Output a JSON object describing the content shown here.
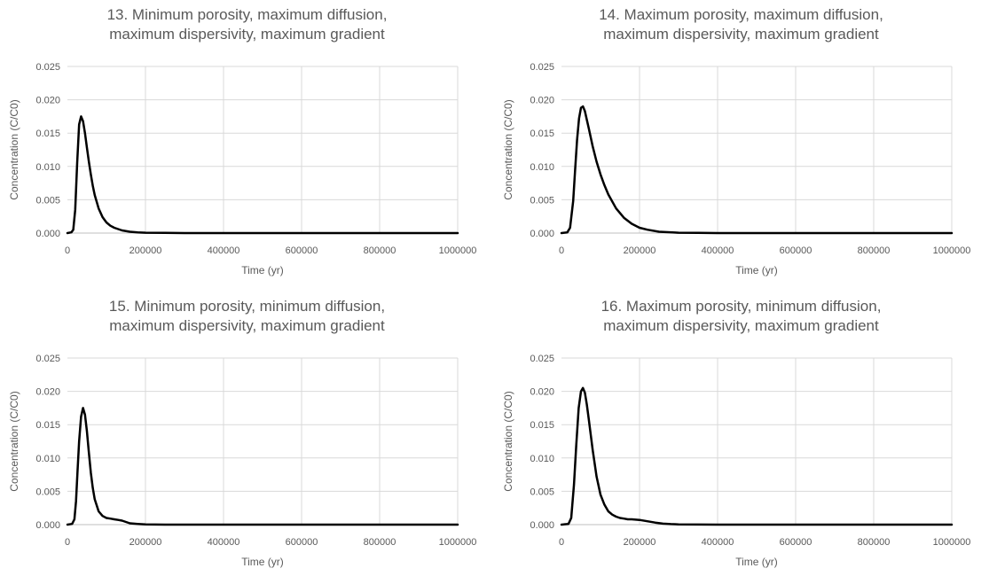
{
  "chart_data": [
    {
      "type": "line",
      "title_lines": [
        "13. Minimum porosity, maximum diffusion,",
        "maximum dispersivity, maximum gradient"
      ],
      "xlabel": "Time (yr)",
      "ylabel": "Concentration (C/C0)",
      "xlim": [
        0,
        1000000
      ],
      "ylim": [
        0,
        0.025
      ],
      "xticks": [
        "0",
        "200000",
        "400000",
        "600000",
        "800000",
        "1000000"
      ],
      "yticks": [
        "0.000",
        "0.005",
        "0.010",
        "0.015",
        "0.020",
        "0.025"
      ],
      "grid": true,
      "legend": "none",
      "line_color": "#000000",
      "series": [
        {
          "x": [
            0,
            10000,
            15000,
            20000,
            25000,
            30000,
            35000,
            40000,
            45000,
            50000,
            55000,
            60000,
            65000,
            70000,
            80000,
            90000,
            100000,
            110000,
            120000,
            140000,
            160000,
            180000,
            200000,
            250000,
            300000,
            400000,
            600000,
            800000,
            1000000
          ],
          "y": [
            0,
            0.0001,
            0.0005,
            0.0035,
            0.0105,
            0.0163,
            0.0175,
            0.0168,
            0.015,
            0.0128,
            0.0107,
            0.0088,
            0.0071,
            0.0057,
            0.0037,
            0.0024,
            0.0016,
            0.0011,
            0.0008,
            0.0004,
            0.0002,
            0.0001,
            5e-05,
            2e-05,
            0,
            0,
            0,
            0,
            0
          ]
        }
      ]
    },
    {
      "type": "line",
      "title_lines": [
        "14. Maximum porosity, maximum diffusion,",
        "maximum dispersivity, maximum gradient"
      ],
      "xlabel": "Time (yr)",
      "ylabel": "Concentration (C/C0)",
      "xlim": [
        0,
        1000000
      ],
      "ylim": [
        0,
        0.025
      ],
      "xticks": [
        "0",
        "200000",
        "400000",
        "600000",
        "800000",
        "1000000"
      ],
      "yticks": [
        "0.000",
        "0.005",
        "0.010",
        "0.015",
        "0.020",
        "0.025"
      ],
      "grid": true,
      "legend": "none",
      "line_color": "#000000",
      "series": [
        {
          "x": [
            0,
            15000,
            22000,
            30000,
            35000,
            40000,
            45000,
            50000,
            55000,
            60000,
            65000,
            70000,
            80000,
            90000,
            100000,
            110000,
            120000,
            140000,
            160000,
            180000,
            200000,
            220000,
            250000,
            300000,
            350000,
            400000,
            600000,
            800000,
            1000000
          ],
          "y": [
            0,
            0.0001,
            0.0008,
            0.0048,
            0.0095,
            0.014,
            0.0172,
            0.0188,
            0.019,
            0.0183,
            0.017,
            0.0157,
            0.013,
            0.0107,
            0.0088,
            0.0072,
            0.0058,
            0.0037,
            0.0023,
            0.0014,
            0.0008,
            0.0005,
            0.0002,
            5e-05,
            2e-05,
            0,
            0,
            0,
            0
          ]
        }
      ]
    },
    {
      "type": "line",
      "title_lines": [
        "15. Minimum porosity, minimum diffusion,",
        "maximum dispersivity, maximum gradient"
      ],
      "xlabel": "Time (yr)",
      "ylabel": "Concentration (C/C0)",
      "xlim": [
        0,
        1000000
      ],
      "ylim": [
        0,
        0.025
      ],
      "xticks": [
        "0",
        "200000",
        "400000",
        "600000",
        "800000",
        "1000000"
      ],
      "yticks": [
        "0.000",
        "0.005",
        "0.010",
        "0.015",
        "0.020",
        "0.025"
      ],
      "grid": true,
      "legend": "none",
      "line_color": "#000000",
      "series": [
        {
          "x": [
            0,
            12000,
            18000,
            22000,
            26000,
            30000,
            35000,
            40000,
            45000,
            50000,
            55000,
            60000,
            65000,
            70000,
            80000,
            90000,
            100000,
            110000,
            120000,
            130000,
            140000,
            150000,
            160000,
            180000,
            200000,
            250000,
            300000,
            400000,
            600000,
            800000,
            1000000
          ],
          "y": [
            0,
            0.0001,
            0.0008,
            0.0035,
            0.008,
            0.0125,
            0.0162,
            0.0175,
            0.0165,
            0.014,
            0.0108,
            0.0078,
            0.0055,
            0.0038,
            0.002,
            0.0013,
            0.001,
            0.0009,
            0.0008,
            0.0007,
            0.0006,
            0.0004,
            0.0002,
            0.0001,
            3e-05,
            0,
            0,
            0,
            0,
            0,
            0
          ]
        }
      ]
    },
    {
      "type": "line",
      "title_lines": [
        "16. Maximum porosity, minimum diffusion,",
        "maximum dispersivity, maximum  gradient"
      ],
      "xlabel": "Time (yr)",
      "ylabel": "Concentration (C/C0)",
      "xlim": [
        0,
        1000000
      ],
      "ylim": [
        0,
        0.025
      ],
      "xticks": [
        "0",
        "200000",
        "400000",
        "600000",
        "800000",
        "1000000"
      ],
      "yticks": [
        "0.000",
        "0.005",
        "0.010",
        "0.015",
        "0.020",
        "0.025"
      ],
      "grid": true,
      "legend": "none",
      "line_color": "#000000",
      "series": [
        {
          "x": [
            0,
            18000,
            25000,
            32000,
            38000,
            44000,
            50000,
            55000,
            60000,
            65000,
            70000,
            75000,
            80000,
            90000,
            100000,
            110000,
            120000,
            130000,
            140000,
            150000,
            160000,
            170000,
            180000,
            200000,
            220000,
            240000,
            260000,
            280000,
            300000,
            350000,
            400000,
            600000,
            800000,
            1000000
          ],
          "y": [
            0,
            0.0001,
            0.001,
            0.006,
            0.012,
            0.0175,
            0.02,
            0.0205,
            0.0198,
            0.018,
            0.0158,
            0.0135,
            0.0112,
            0.0072,
            0.0045,
            0.003,
            0.002,
            0.0015,
            0.0012,
            0.001,
            0.0009,
            0.0008,
            0.0008,
            0.0007,
            0.0005,
            0.0003,
            0.00015,
            8e-05,
            4e-05,
            1e-05,
            0,
            0,
            0,
            0
          ]
        }
      ]
    }
  ]
}
